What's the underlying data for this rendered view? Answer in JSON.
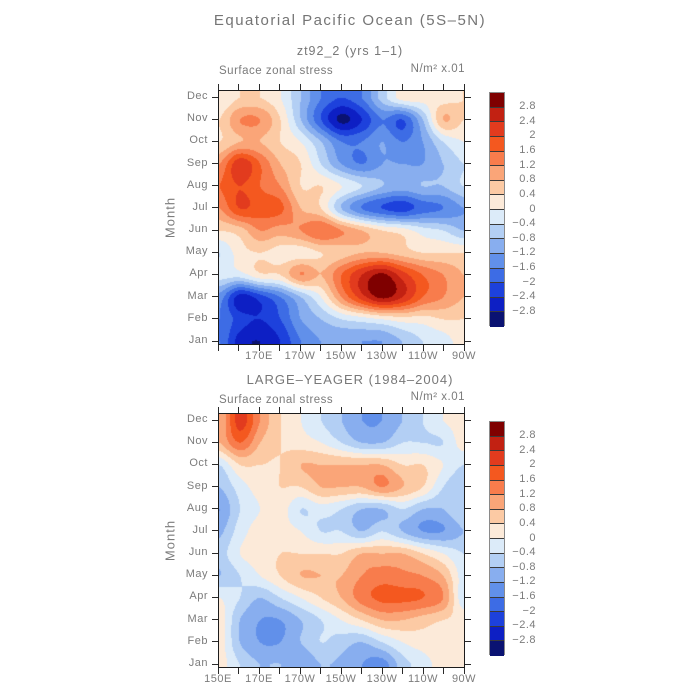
{
  "page": {
    "title": "Equatorial Pacific Ocean (5S–5N)"
  },
  "colors": {
    "frame": "#1c1c1c",
    "tick": "#2a2a2a",
    "text_gray": "#767676",
    "tick_label_gray": "#7c7c7c"
  },
  "palette_cool_to_warm": [
    "#0a1272",
    "#0d1fc4",
    "#1d41dc",
    "#3d6ce5",
    "#6190ea",
    "#88aeef",
    "#b3cff4",
    "#dcebf9",
    "#fcead9",
    "#fccaa4",
    "#faa578",
    "#f87c4c",
    "#f4581f",
    "#e23b1e",
    "#c22112",
    "#7f0000"
  ],
  "colorbar": {
    "labels_top_to_bottom": [
      "2.8",
      "2.4",
      "2",
      "1.6",
      "1.2",
      "0.8",
      "0.4",
      "0",
      "−0.4",
      "−0.8",
      "−1.2",
      "−1.6",
      "−2",
      "−2.4",
      "−2.8"
    ]
  },
  "chart_data": [
    {
      "type": "heatmap",
      "title": "zt92_2 (yrs 1–1)",
      "field_label": "Surface zonal stress",
      "units": "N/m² x.01",
      "ylabel": "Month",
      "months_bottom_to_top": [
        "Jan",
        "Feb",
        "Mar",
        "Apr",
        "May",
        "Jun",
        "Jul",
        "Aug",
        "Sep",
        "Oct",
        "Nov",
        "Dec"
      ],
      "lon_deg_east": [
        150,
        160,
        170,
        180,
        190,
        200,
        210,
        220,
        230,
        240,
        250,
        260,
        270
      ],
      "x_domain_deg": [
        150,
        270
      ],
      "xticks": [
        {
          "deg": 170,
          "label": "170E"
        },
        {
          "deg": 190,
          "label": "170W"
        },
        {
          "deg": 210,
          "label": "150W"
        },
        {
          "deg": 230,
          "label": "130W"
        },
        {
          "deg": 250,
          "label": "110W"
        },
        {
          "deg": 270,
          "label": "90W"
        }
      ],
      "levels": {
        "min": -2.8,
        "max": 2.8,
        "step": 0.4
      },
      "values_rows_jan_first": [
        [
          -1.6,
          -2.6,
          -2.8,
          -2.4,
          -1.6,
          -1.2,
          -1.2,
          -1.2,
          -1.2,
          -0.8,
          -0.4,
          -0.2,
          0.2
        ],
        [
          -1.6,
          -2.2,
          -2.4,
          -2.0,
          -1.2,
          -0.8,
          -0.4,
          -0.2,
          0.0,
          0.2,
          0.2,
          0.4,
          0.4
        ],
        [
          -1.4,
          -2.6,
          -2.2,
          -1.6,
          -0.8,
          0.0,
          1.2,
          2.2,
          2.9,
          2.4,
          1.6,
          1.2,
          0.8
        ],
        [
          -0.2,
          -0.2,
          0.3,
          0.4,
          1.2,
          0.8,
          1.6,
          2.4,
          2.9,
          2.2,
          1.6,
          1.2,
          0.8
        ],
        [
          -0.4,
          0.2,
          0.4,
          0.2,
          0.2,
          0.4,
          0.6,
          0.8,
          0.8,
          0.6,
          0.4,
          0.4,
          0.4
        ],
        [
          0.4,
          0.6,
          1.2,
          1.0,
          1.2,
          1.6,
          1.2,
          0.8,
          0.4,
          0.2,
          -0.2,
          -0.4,
          -0.8
        ],
        [
          1.2,
          2.0,
          1.8,
          1.7,
          0.8,
          0.4,
          -0.8,
          -1.6,
          -2.0,
          -2.2,
          -1.8,
          -1.6,
          -1.2
        ],
        [
          1.6,
          2.0,
          1.6,
          1.2,
          0.4,
          0.4,
          0.0,
          -0.4,
          -0.8,
          -1.0,
          -0.8,
          -0.8,
          -0.4
        ],
        [
          1.2,
          2.3,
          1.6,
          0.8,
          0.4,
          -0.4,
          -1.2,
          -1.6,
          -1.2,
          -1.2,
          -1.2,
          -0.8,
          -0.4
        ],
        [
          0.4,
          0.8,
          0.8,
          0.4,
          0.0,
          -0.8,
          -1.6,
          -1.6,
          -1.2,
          -1.6,
          -1.2,
          -0.4,
          0.0
        ],
        [
          0.4,
          1.2,
          1.2,
          0.4,
          -0.8,
          -2.0,
          -2.9,
          -2.4,
          -1.6,
          -2.0,
          -0.8,
          0.8,
          0.4
        ],
        [
          0.0,
          0.4,
          0.4,
          0.0,
          -0.8,
          -1.6,
          -2.0,
          -1.6,
          -0.6,
          0.2,
          0.2,
          0.2,
          0.4
        ]
      ]
    },
    {
      "type": "heatmap",
      "title": "LARGE–YEAGER (1984–2004)",
      "field_label": "Surface zonal stress",
      "units": "N/m² x.01",
      "ylabel": "Month",
      "months_bottom_to_top": [
        "Jan",
        "Feb",
        "Mar",
        "Apr",
        "May",
        "Jun",
        "Jul",
        "Aug",
        "Sep",
        "Oct",
        "Nov",
        "Dec"
      ],
      "lon_deg_east": [
        150,
        160,
        170,
        180,
        190,
        200,
        210,
        220,
        230,
        240,
        250,
        260,
        270
      ],
      "x_domain_deg": [
        150,
        270
      ],
      "xticks": [
        {
          "deg": 150,
          "label": "150E"
        },
        {
          "deg": 170,
          "label": "170E"
        },
        {
          "deg": 190,
          "label": "170W"
        },
        {
          "deg": 210,
          "label": "150W"
        },
        {
          "deg": 230,
          "label": "130W"
        },
        {
          "deg": 250,
          "label": "110W"
        },
        {
          "deg": 270,
          "label": "90W"
        }
      ],
      "levels": {
        "min": -2.8,
        "max": 2.8,
        "step": 0.4
      },
      "values_rows_jan_first": [
        [
          0.2,
          -0.4,
          -0.8,
          -0.8,
          -1.2,
          -0.8,
          -0.9,
          -1.2,
          -1.4,
          -0.6,
          -0.2,
          0.2,
          0.3
        ],
        [
          0.2,
          -0.8,
          -1.2,
          -1.2,
          -0.8,
          -0.4,
          -0.6,
          -0.8,
          -0.4,
          0.0,
          0.2,
          0.2,
          0.3
        ],
        [
          0.2,
          -0.8,
          -1.2,
          -1.2,
          -0.8,
          -0.4,
          0.0,
          0.4,
          0.8,
          0.8,
          0.6,
          0.4,
          0.3
        ],
        [
          0.0,
          -0.4,
          -0.8,
          -0.4,
          0.0,
          0.4,
          0.8,
          1.4,
          1.7,
          1.7,
          1.6,
          1.2,
          -0.3
        ],
        [
          -0.8,
          -0.4,
          0.0,
          0.4,
          0.8,
          0.8,
          0.8,
          1.2,
          1.4,
          1.3,
          1.2,
          0.8,
          -0.2
        ],
        [
          -0.6,
          0.0,
          0.2,
          0.4,
          0.4,
          0.4,
          0.4,
          0.8,
          0.8,
          0.8,
          0.4,
          0.0,
          -0.4
        ],
        [
          -0.9,
          -0.2,
          0.2,
          0.2,
          0.0,
          -0.4,
          -0.4,
          -0.8,
          -0.4,
          -0.8,
          -1.2,
          -1.2,
          -0.8
        ],
        [
          -1.2,
          -0.4,
          0.0,
          0.2,
          -0.4,
          -0.2,
          -0.4,
          -0.8,
          -0.8,
          -0.4,
          -0.8,
          -0.8,
          -0.4
        ],
        [
          -0.8,
          -0.2,
          0.2,
          0.4,
          0.4,
          0.8,
          0.8,
          0.8,
          1.2,
          0.8,
          0.4,
          -0.4,
          -0.8
        ],
        [
          -0.4,
          0.4,
          0.4,
          0.4,
          0.8,
          0.8,
          0.8,
          0.8,
          0.8,
          0.4,
          0.4,
          0.0,
          -0.4
        ],
        [
          0.8,
          1.6,
          0.8,
          0.4,
          0.2,
          0.0,
          -0.4,
          -0.8,
          -0.8,
          -0.4,
          -0.4,
          -0.4,
          0.2
        ],
        [
          0.8,
          2.2,
          1.2,
          0.4,
          0.0,
          -0.4,
          -0.8,
          -1.2,
          -1.2,
          -0.8,
          -0.4,
          0.0,
          0.2
        ]
      ]
    }
  ]
}
